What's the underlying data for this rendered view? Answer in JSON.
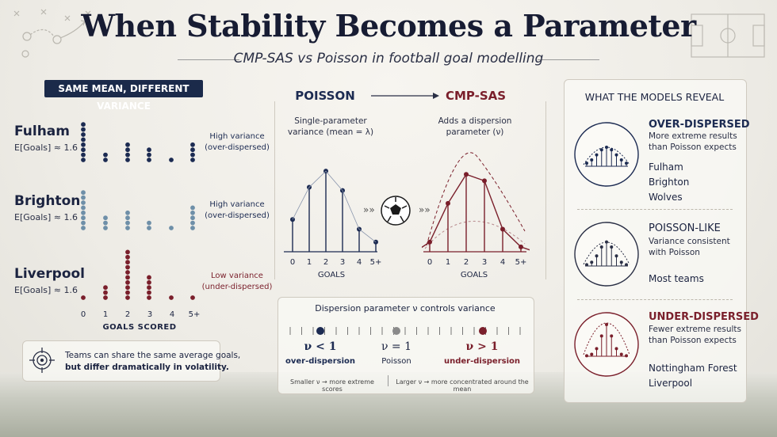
{
  "title": "When Stability Becomes a Parameter",
  "subtitle": "CMP-SAS vs Poisson in football goal modelling",
  "left": {
    "pill": "SAME MEAN, DIFFERENT VARIANCE",
    "teams": [
      {
        "name": "Fulham",
        "mean": "E[Goals] ≈ 1.6",
        "variance_line1": "High variance",
        "variance_line2": "(over-dispersed)",
        "color": "#1c2b52",
        "dots": [
          8,
          2,
          4,
          3,
          1,
          4
        ]
      },
      {
        "name": "Brighton",
        "mean": "E[Goals] ≈ 1.6",
        "variance_line1": "High variance",
        "variance_line2": "(over-dispersed)",
        "color": "#6e8fa8",
        "dots": [
          8,
          3,
          4,
          2,
          1,
          5
        ]
      },
      {
        "name": "Liverpool",
        "mean": "E[Goals] ≈ 1.6",
        "variance_line1": "Low variance",
        "variance_line2": "(under-dispersed)",
        "color": "#7a1f2b",
        "dots": [
          1,
          3,
          10,
          5,
          1,
          1
        ]
      }
    ],
    "x_ticks": [
      "0",
      "1",
      "2",
      "3",
      "4",
      "5+"
    ],
    "x_label": "GOALS SCORED",
    "note_line1": "Teams can share the same average goals,",
    "note_line2": "but differ dramatically in volatility."
  },
  "middle": {
    "poisson_title": "POISSON",
    "cmp_title": "CMP-SAS",
    "poisson_desc1": "Single-parameter",
    "poisson_desc2": "variance (mean = λ)",
    "cmp_desc1": "Adds a dispersion",
    "cmp_desc2": "parameter (ν)",
    "x_ticks": [
      "0",
      "1",
      "2",
      "3",
      "4",
      "5+"
    ],
    "x_label": "GOALS",
    "poisson_color": "#1c2b52",
    "cmp_color": "#7a1f2b",
    "chevrons": "»»",
    "dispersion_title": "Dispersion parameter ν controls variance",
    "markers": [
      {
        "symbol": "ν < 1",
        "label": "over-dispersion"
      },
      {
        "symbol": "ν = 1",
        "label": "Poisson"
      },
      {
        "symbol": "ν > 1",
        "label": "under-dispersion"
      }
    ],
    "footnote_left": "Smaller ν → more extreme scores",
    "footnote_right": "Larger ν → more concentrated around the mean"
  },
  "chart_data": [
    {
      "type": "bar",
      "title": "POISSON",
      "xlabel": "GOALS",
      "categories": [
        "0",
        "1",
        "2",
        "3",
        "4",
        "5+"
      ],
      "values": [
        0.2,
        0.4,
        0.5,
        0.38,
        0.14,
        0.06
      ],
      "ylim": [
        0,
        0.55
      ]
    },
    {
      "type": "bar",
      "title": "CMP-SAS",
      "xlabel": "GOALS",
      "categories": [
        "0",
        "1",
        "2",
        "3",
        "4",
        "5+"
      ],
      "values": [
        0.06,
        0.3,
        0.48,
        0.44,
        0.14,
        0.03
      ],
      "ylim": [
        0,
        0.55
      ]
    }
  ],
  "right": {
    "header": "WHAT THE MODELS REVEAL",
    "sections": [
      {
        "head": "OVER-DISPERSED",
        "desc1": "More extreme results",
        "desc2": "than Poisson expects",
        "teams": [
          "Fulham",
          "Brighton",
          "Wolves"
        ],
        "color": "#1c2b52"
      },
      {
        "head": "POISSON-LIKE",
        "desc1": "Variance consistent",
        "desc2": "with Poisson",
        "teams": [
          "Most teams"
        ],
        "color": "#2a2f45"
      },
      {
        "head": "UNDER-DISPERSED",
        "desc1": "Fewer extreme results",
        "desc2": "than Poisson expects",
        "teams": [
          "Nottingham Forest",
          "Liverpool"
        ],
        "color": "#7a1f2b"
      }
    ]
  }
}
